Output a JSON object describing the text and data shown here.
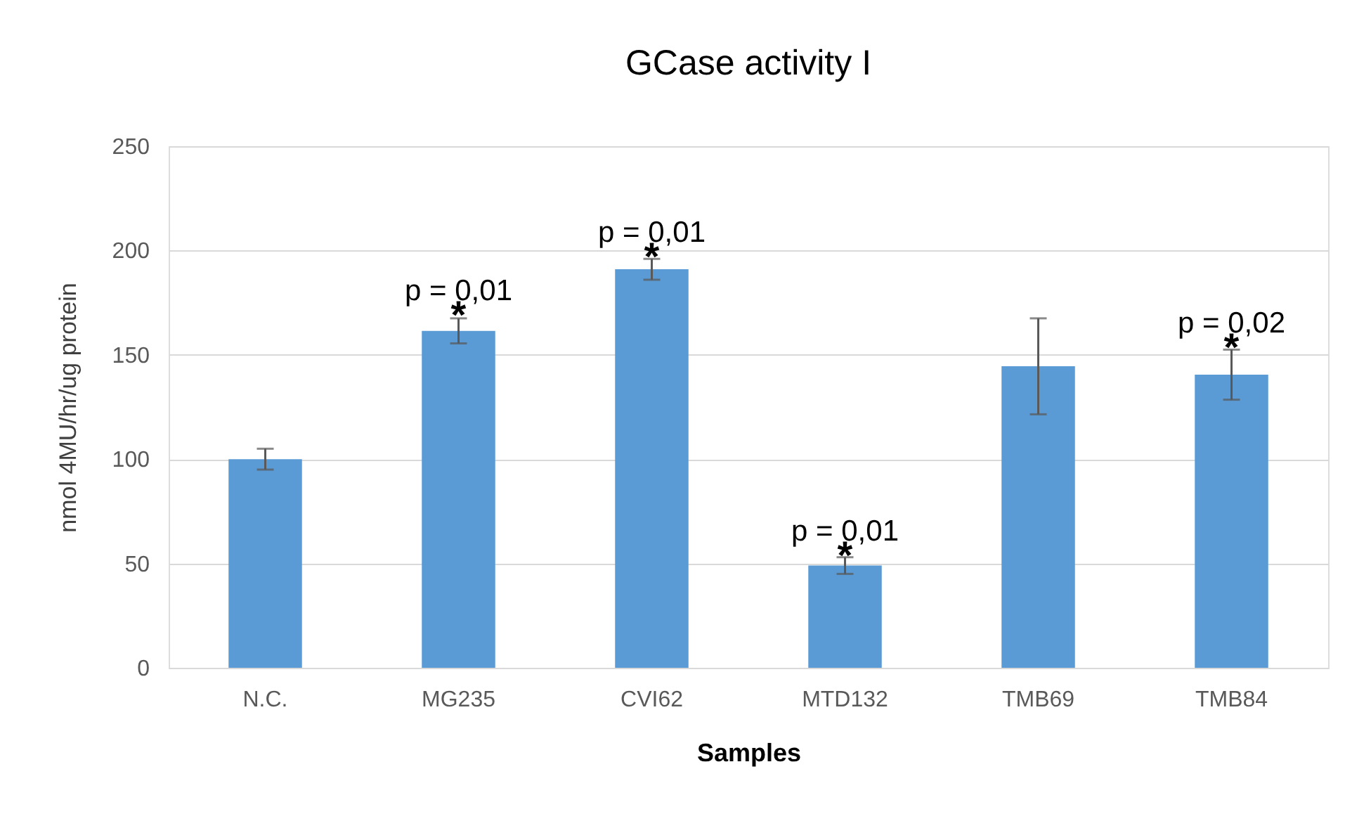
{
  "chart_data": {
    "type": "bar",
    "title": "GCase activity I",
    "xlabel": "Samples",
    "ylabel": "nmol 4MU/hr/ug protein",
    "categories": [
      "N.C.",
      "MG235",
      "CVI62",
      "MTD132",
      "TMB69",
      "TMB84"
    ],
    "values": [
      100,
      161.5,
      191,
      49,
      144.5,
      140.5
    ],
    "errors": [
      5,
      6,
      5,
      4,
      23,
      12
    ],
    "color": "#5b9bd5",
    "ylim": [
      0,
      250
    ],
    "yticks": [
      0,
      50,
      100,
      150,
      200,
      250
    ],
    "grid": "y",
    "annotations": [
      {
        "text": "*",
        "x": "MG235",
        "y": 168
      },
      {
        "text": "p = 0,01",
        "x": "MG235",
        "y": 168
      },
      {
        "text": "*",
        "x": "CVI62",
        "y": 196
      },
      {
        "text": "p = 0,01",
        "x": "CVI62",
        "y": 196
      },
      {
        "text": "*",
        "x": "MTD132",
        "y": 53
      },
      {
        "text": "p = 0,01",
        "x": "MTD132",
        "y": 53
      },
      {
        "text": "*",
        "x": "TMB84",
        "y": 152.5
      },
      {
        "text": "p = 0,02",
        "x": "TMB84",
        "y": 152.5
      }
    ]
  }
}
